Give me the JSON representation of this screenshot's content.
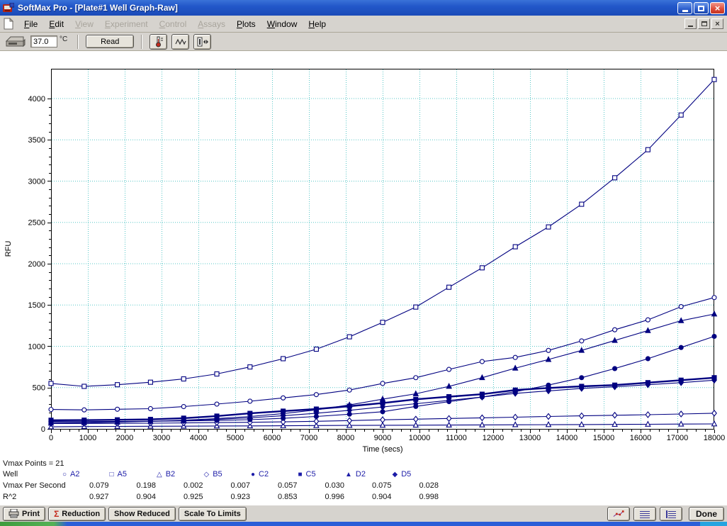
{
  "window": {
    "title": "SoftMax Pro - [Plate#1 Well Graph-Raw]"
  },
  "menu": {
    "items": [
      {
        "label": "File",
        "enabled": true
      },
      {
        "label": "Edit",
        "enabled": true
      },
      {
        "label": "View",
        "enabled": false
      },
      {
        "label": "Experiment",
        "enabled": false
      },
      {
        "label": "Control",
        "enabled": false
      },
      {
        "label": "Assays",
        "enabled": false
      },
      {
        "label": "Plots",
        "enabled": true
      },
      {
        "label": "Window",
        "enabled": true
      },
      {
        "label": "Help",
        "enabled": true
      }
    ]
  },
  "toolbar": {
    "temperature": "37.0",
    "temperature_unit": "°C",
    "read_label": "Read"
  },
  "chart_data": {
    "type": "line",
    "title": "",
    "xlabel": "Time (secs)",
    "ylabel": "RFU",
    "xlim": [
      0,
      18000
    ],
    "ylim": [
      0,
      4360
    ],
    "x_major_tick": 1000,
    "x_minor_tick": 250,
    "y_major_tick": 500,
    "y_minor_tick": 100,
    "y_label_max": 4000,
    "grid": "dotted",
    "grid_color": "#58c7c7",
    "line_color": "#000080",
    "legend_position": "bottom-table",
    "x": [
      0,
      900,
      1800,
      2700,
      3600,
      4500,
      5400,
      6300,
      7200,
      8100,
      9000,
      9900,
      10800,
      11700,
      12600,
      13500,
      14400,
      15300,
      16200,
      17100,
      18000
    ],
    "series": [
      {
        "name": "A2",
        "marker": "circle-open",
        "glyph": "○",
        "bold": false,
        "vmax_per_second": "0.079",
        "r2": "0.927",
        "values": [
          235,
          230,
          238,
          245,
          270,
          300,
          335,
          375,
          415,
          470,
          550,
          620,
          720,
          815,
          865,
          950,
          1065,
          1200,
          1320,
          1480,
          1590
        ]
      },
      {
        "name": "A5",
        "marker": "square-open",
        "glyph": "□",
        "bold": false,
        "vmax_per_second": "0.198",
        "r2": "0.904",
        "values": [
          550,
          515,
          535,
          565,
          605,
          665,
          750,
          850,
          965,
          1115,
          1290,
          1475,
          1715,
          1950,
          2205,
          2445,
          2720,
          3040,
          3380,
          3800,
          4230
        ]
      },
      {
        "name": "B2",
        "marker": "triangle-open",
        "glyph": "△",
        "bold": false,
        "vmax_per_second": "0.002",
        "r2": "0.925",
        "values": [
          25,
          28,
          30,
          32,
          33,
          35,
          36,
          38,
          40,
          42,
          44,
          45,
          46,
          48,
          50,
          51,
          52,
          54,
          56,
          58,
          60
        ]
      },
      {
        "name": "B5",
        "marker": "diamond-open",
        "glyph": "◇",
        "bold": false,
        "vmax_per_second": "0.007",
        "r2": "0.923",
        "values": [
          65,
          66,
          67,
          69,
          72,
          76,
          80,
          85,
          92,
          100,
          110,
          118,
          126,
          134,
          142,
          150,
          158,
          165,
          172,
          180,
          190
        ]
      },
      {
        "name": "C2",
        "marker": "circle-filled",
        "glyph": "●",
        "bold": false,
        "vmax_per_second": "0.057",
        "r2": "0.853",
        "values": [
          90,
          88,
          90,
          93,
          96,
          102,
          112,
          128,
          150,
          178,
          208,
          272,
          330,
          385,
          450,
          530,
          620,
          730,
          850,
          985,
          1120
        ]
      },
      {
        "name": "C5",
        "marker": "square-filled",
        "glyph": "■",
        "bold": true,
        "vmax_per_second": "0.030",
        "r2": "0.996",
        "values": [
          105,
          106,
          110,
          115,
          130,
          155,
          188,
          215,
          240,
          275,
          312,
          358,
          390,
          420,
          470,
          495,
          515,
          530,
          560,
          590,
          620
        ]
      },
      {
        "name": "D2",
        "marker": "triangle-filled",
        "glyph": "▲",
        "bold": false,
        "vmax_per_second": "0.075",
        "r2": "0.904",
        "values": [
          70,
          75,
          82,
          92,
          105,
          125,
          150,
          185,
          230,
          290,
          360,
          425,
          515,
          620,
          735,
          840,
          950,
          1070,
          1190,
          1310,
          1390
        ]
      },
      {
        "name": "D5",
        "marker": "diamond-filled",
        "glyph": "◆",
        "bold": false,
        "vmax_per_second": "0.028",
        "r2": "0.998",
        "values": [
          85,
          86,
          88,
          92,
          100,
          115,
          135,
          160,
          190,
          225,
          265,
          305,
          345,
          385,
          430,
          460,
          490,
          510,
          535,
          560,
          590
        ]
      }
    ]
  },
  "stats": {
    "vmax_points": "Vmax Points = 21",
    "well_label": "Well",
    "vmax_row_label": "Vmax Per Second",
    "r2_row_label": "R^2"
  },
  "footer": {
    "print_label": "Print",
    "reduction_label": "Reduction",
    "reduction_icon": "Σ",
    "show_reduced_label": "Show Reduced",
    "scale_to_limits_label": "Scale To Limits",
    "done_label": "Done"
  }
}
